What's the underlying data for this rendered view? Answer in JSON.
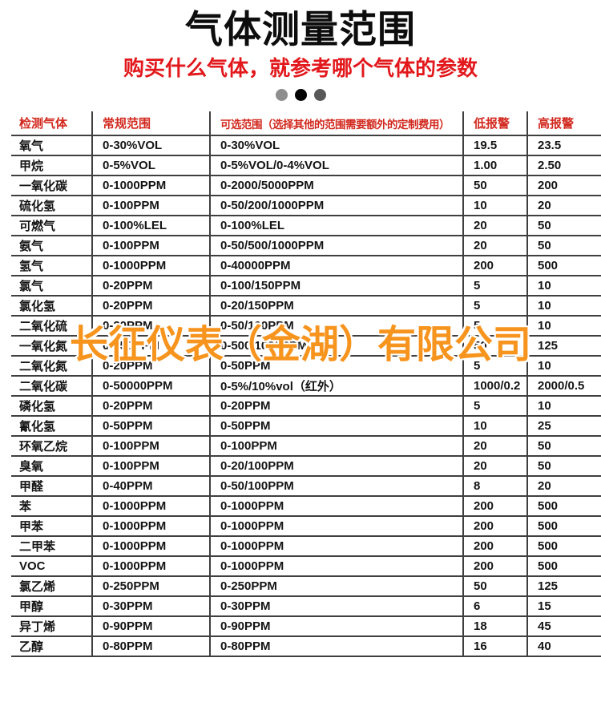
{
  "page": {
    "title": "气体测量范围",
    "subtitle": "购买什么气体，就参考哪个气体的参数",
    "watermark": "长征仪表（金湖）有限公司"
  },
  "colors": {
    "title-black": "#0d0d0d",
    "subtitle-red": "#e2181c",
    "header-red": "#d2281e",
    "line-gray": "#3f3f3f",
    "watermark-orange": "#f7941e",
    "dot-gray-light": "#8e8e8e",
    "dot-black": "#030303",
    "dot-gray-dark": "#595959"
  },
  "table": {
    "columns": [
      "检测气体",
      "常规范围",
      "可选范围（选择其他的范围需要额外的定制费用）",
      "低报警",
      "高报警"
    ],
    "rows": [
      {
        "gas": "氧气",
        "normal": "0-30%VOL",
        "optional": "0-30%VOL",
        "low": "19.5",
        "high": "23.5"
      },
      {
        "gas": "甲烷",
        "normal": "0-5%VOL",
        "optional": "0-5%VOL/0-4%VOL",
        "low": "1.00",
        "high": "2.50"
      },
      {
        "gas": "一氧化碳",
        "normal": "0-1000PPM",
        "optional": "0-2000/5000PPM",
        "low": "50",
        "high": "200"
      },
      {
        "gas": "硫化氢",
        "normal": "0-100PPM",
        "optional": "0-50/200/1000PPM",
        "low": "10",
        "high": "20"
      },
      {
        "gas": "可燃气",
        "normal": "0-100%LEL",
        "optional": "0-100%LEL",
        "low": "20",
        "high": "50"
      },
      {
        "gas": "氨气",
        "normal": "0-100PPM",
        "optional": "0-50/500/1000PPM",
        "low": "20",
        "high": "50"
      },
      {
        "gas": "氢气",
        "normal": "0-1000PPM",
        "optional": "0-40000PPM",
        "low": "200",
        "high": "500"
      },
      {
        "gas": "氯气",
        "normal": "0-20PPM",
        "optional": "0-100/150PPM",
        "low": "5",
        "high": "10"
      },
      {
        "gas": "氯化氢",
        "normal": "0-20PPM",
        "optional": "0-20/150PPM",
        "low": "5",
        "high": "10"
      },
      {
        "gas": "二氧化硫",
        "normal": "0-20PPM",
        "optional": "0-50/100PPM",
        "low": "5",
        "high": "10"
      },
      {
        "gas": "一氧化氮",
        "normal": "0-250PPM",
        "optional": "0-500/1000PPM",
        "low": "50",
        "high": "125"
      },
      {
        "gas": "二氧化氮",
        "normal": "0-20PPM",
        "optional": "0-50PPM",
        "low": "5",
        "high": "10"
      },
      {
        "gas": "二氧化碳",
        "normal": "0-50000PPM",
        "optional": "0-5%/10%vol（红外）",
        "low": "1000/0.2",
        "high": "2000/0.5"
      },
      {
        "gas": "磷化氢",
        "normal": "0-20PPM",
        "optional": "0-20PPM",
        "low": "5",
        "high": "10"
      },
      {
        "gas": "氰化氢",
        "normal": "0-50PPM",
        "optional": "0-50PPM",
        "low": "10",
        "high": "25"
      },
      {
        "gas": "环氧乙烷",
        "normal": "0-100PPM",
        "optional": "0-100PPM",
        "low": "20",
        "high": "50"
      },
      {
        "gas": "臭氧",
        "normal": "0-100PPM",
        "optional": "0-20/100PPM",
        "low": "20",
        "high": "50"
      },
      {
        "gas": "甲醛",
        "normal": "0-40PPM",
        "optional": "0-50/100PPM",
        "low": "8",
        "high": "20"
      },
      {
        "gas": "苯",
        "normal": "0-1000PPM",
        "optional": "0-1000PPM",
        "low": "200",
        "high": "500"
      },
      {
        "gas": "甲苯",
        "normal": "0-1000PPM",
        "optional": "0-1000PPM",
        "low": "200",
        "high": "500"
      },
      {
        "gas": "二甲苯",
        "normal": "0-1000PPM",
        "optional": "0-1000PPM",
        "low": "200",
        "high": "500"
      },
      {
        "gas": "VOC",
        "normal": "0-1000PPM",
        "optional": "0-1000PPM",
        "low": "200",
        "high": "500"
      },
      {
        "gas": "氯乙烯",
        "normal": "0-250PPM",
        "optional": "0-250PPM",
        "low": "50",
        "high": "125"
      },
      {
        "gas": "甲醇",
        "normal": "0-30PPM",
        "optional": "0-30PPM",
        "low": "6",
        "high": "15"
      },
      {
        "gas": "异丁烯",
        "normal": "0-90PPM",
        "optional": "0-90PPM",
        "low": "18",
        "high": "45"
      },
      {
        "gas": "乙醇",
        "normal": "0-80PPM",
        "optional": "0-80PPM",
        "low": "16",
        "high": "40"
      }
    ]
  }
}
